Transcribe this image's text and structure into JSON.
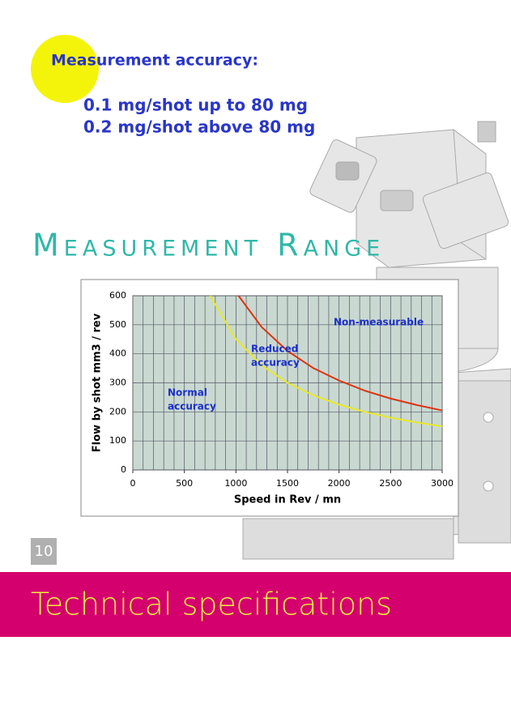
{
  "accuracy": {
    "heading": "Measurement accuracy:",
    "lines": [
      "0.1 mg/shot up to 80 mg",
      "0.2 mg/shot above 80 mg"
    ]
  },
  "section_title": "Measurement Range",
  "chart_data": {
    "type": "line",
    "x_label": "Speed in Rev / mn",
    "y_label": "Flow by shot mm3 / rev",
    "xlim": [
      0,
      3000
    ],
    "xticks": [
      0,
      500,
      1000,
      1500,
      2000,
      2500,
      3000
    ],
    "ylim": [
      0,
      600
    ],
    "yticks": [
      0,
      100,
      200,
      300,
      400,
      500,
      600
    ],
    "grid": true,
    "series": [
      {
        "color": "#e8e82a",
        "x": [
          750,
          1000,
          1250,
          1500,
          1750,
          2000,
          2250,
          2500,
          2750,
          3000
        ],
        "values": [
          600,
          450,
          360,
          300,
          257,
          225,
          200,
          180,
          164,
          150
        ]
      },
      {
        "color": "#dd3311",
        "x": [
          1025,
          1250,
          1500,
          1750,
          2000,
          2250,
          2500,
          2750,
          3000
        ],
        "values": [
          600,
          492,
          410,
          351,
          308,
          273,
          246,
          224,
          205
        ]
      }
    ],
    "annotations": [
      [
        "Non-measurable"
      ],
      [
        "Reduced",
        "accuracy"
      ],
      [
        "Normal",
        "accuracy"
      ]
    ]
  },
  "page_number": "10",
  "footer_title": "Technical specifications"
}
